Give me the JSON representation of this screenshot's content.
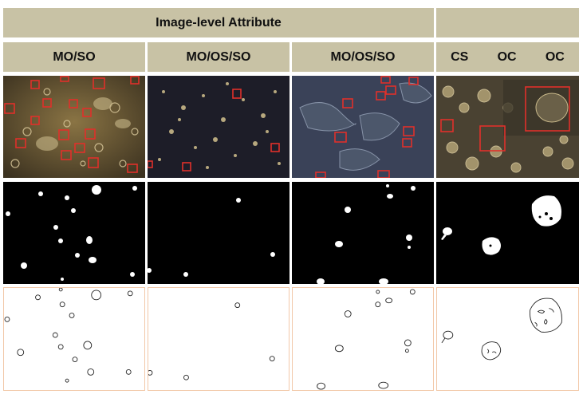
{
  "header": {
    "main_title": "Image-level Attribute",
    "extra_title": ""
  },
  "columns": [
    {
      "label": "MO/SO"
    },
    {
      "label": "MO/OS/SO"
    },
    {
      "label": "MO/OS/SO"
    },
    {
      "labels": [
        "CS",
        "OC",
        "OC"
      ]
    }
  ],
  "colors": {
    "header_bg": "#c8c2a5",
    "box_red": "#e0302a",
    "mask_bg": "#000000",
    "mask_fg": "#ffffff",
    "contour_border": "#f2c8a8"
  }
}
